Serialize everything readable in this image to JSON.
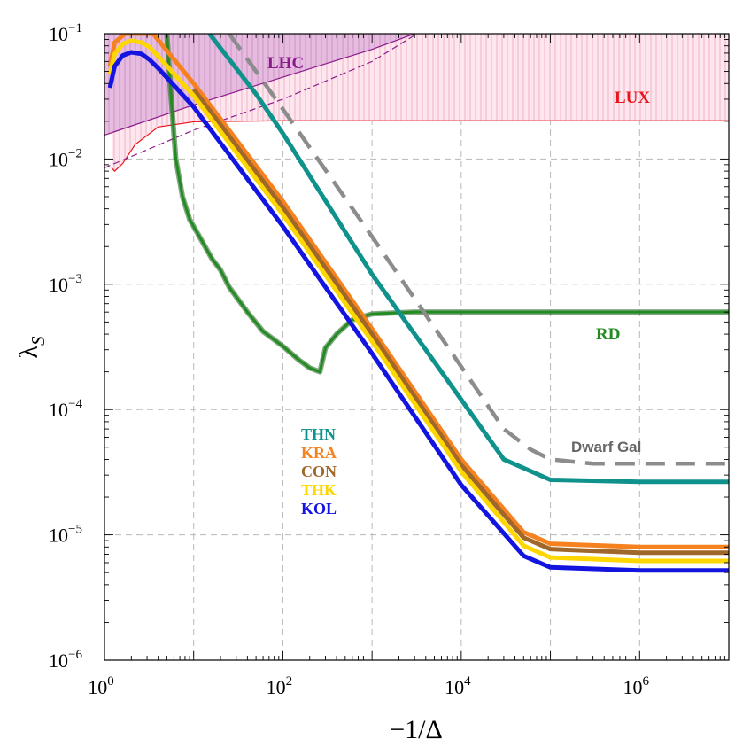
{
  "chart_data": {
    "type": "line",
    "title": "",
    "xlabel": "−1/Δ",
    "ylabel": "λ",
    "ylabel_sub": "S",
    "xscale": "log",
    "yscale": "log",
    "xlim": [
      1,
      10000000
    ],
    "ylim": [
      1e-06,
      0.1
    ],
    "grid": true,
    "x_ticks": [
      {
        "value": 1,
        "base": "10",
        "exp": "0"
      },
      {
        "value": 100,
        "base": "10",
        "exp": "2"
      },
      {
        "value": 10000,
        "base": "10",
        "exp": "4"
      },
      {
        "value": 1000000,
        "base": "10",
        "exp": "6"
      }
    ],
    "y_ticks": [
      {
        "value": 0.1,
        "base": "10",
        "exp": "−1"
      },
      {
        "value": 0.01,
        "base": "10",
        "exp": "−2"
      },
      {
        "value": 0.001,
        "base": "10",
        "exp": "−3"
      },
      {
        "value": 0.0001,
        "base": "10",
        "exp": "−4"
      },
      {
        "value": 1e-05,
        "base": "10",
        "exp": "−5"
      },
      {
        "value": 1e-06,
        "base": "10",
        "exp": "−6"
      }
    ],
    "regions": [
      {
        "name": "LHC",
        "label": "LHC",
        "color": "#8b1a8b",
        "boundary": [
          [
            1,
            0.0155
          ],
          [
            10,
            0.027
          ],
          [
            100,
            0.045
          ],
          [
            1000,
            0.075
          ],
          [
            3000,
            0.1
          ]
        ],
        "projection": [
          [
            1,
            0.0085
          ],
          [
            10,
            0.017
          ],
          [
            100,
            0.03
          ],
          [
            1000,
            0.06
          ],
          [
            3200,
            0.1
          ]
        ]
      },
      {
        "name": "LUX",
        "label": "LUX",
        "color": "#e8151a",
        "boundary": [
          [
            1.2,
            0.0085
          ],
          [
            1.3,
            0.008
          ],
          [
            1.6,
            0.0092
          ],
          [
            2.2,
            0.013
          ],
          [
            4,
            0.018
          ],
          [
            10,
            0.0198
          ],
          [
            100,
            0.0202
          ],
          [
            10000000,
            0.0202
          ]
        ]
      }
    ],
    "series": [
      {
        "name": "THN",
        "color": "#10928c",
        "x": [
          15,
          50,
          100,
          1000,
          10000,
          30000,
          100000,
          1000000,
          10000000
        ],
        "y": [
          0.1,
          0.033,
          0.016,
          0.0012,
          0.00012,
          4e-05,
          2.75e-05,
          2.65e-05,
          2.65e-05
        ]
      },
      {
        "name": "KRA",
        "color": "#f5821f",
        "x": [
          1.15,
          1.3,
          1.7,
          2.3,
          3,
          3.5,
          10,
          100,
          1000,
          10000,
          50000,
          100000,
          1000000,
          10000000
        ],
        "y": [
          0.055,
          0.085,
          0.1,
          0.1,
          0.1,
          0.1,
          0.04,
          0.0046,
          0.00044,
          4e-05,
          1.05e-05,
          8.5e-06,
          8e-06,
          8e-06
        ]
      },
      {
        "name": "CON",
        "color": "#a0672a",
        "x": [
          10,
          100,
          1000,
          10000,
          50000,
          100000,
          1000000,
          10000000
        ],
        "y": [
          0.036,
          0.0041,
          0.0004,
          3.6e-05,
          9.5e-06,
          7.7e-06,
          7.2e-06,
          7.2e-06
        ]
      },
      {
        "name": "THK",
        "color": "#ffd700",
        "x": [
          1.15,
          1.3,
          1.6,
          2,
          2.6,
          3.2,
          4,
          10,
          100,
          1000,
          10000,
          50000,
          100000,
          1000000,
          10000000
        ],
        "y": [
          0.048,
          0.069,
          0.083,
          0.088,
          0.085,
          0.078,
          0.066,
          0.032,
          0.0036,
          0.00035,
          3.2e-05,
          8.2e-06,
          6.6e-06,
          6.2e-06,
          6.2e-06
        ]
      },
      {
        "name": "KOL",
        "color": "#1414e0",
        "x": [
          1.15,
          1.3,
          1.6,
          2,
          2.6,
          3.2,
          4,
          10,
          100,
          1000,
          10000,
          50000,
          100000,
          1000000,
          10000000
        ],
        "y": [
          0.037,
          0.055,
          0.067,
          0.071,
          0.069,
          0.062,
          0.053,
          0.026,
          0.0029,
          0.00028,
          2.5e-05,
          6.8e-06,
          5.5e-06,
          5.2e-06,
          5.2e-06
        ]
      },
      {
        "name": "RD",
        "label": "RD",
        "color": "#228b22",
        "x": [
          5,
          5.6,
          6.3,
          7.5,
          9,
          12,
          16,
          20,
          25,
          40,
          60,
          100,
          150,
          200,
          260,
          300,
          400,
          600,
          1000,
          3000,
          10000,
          100000,
          10000000
        ],
        "y": [
          0.1,
          0.03,
          0.01,
          0.005,
          0.0033,
          0.0023,
          0.0016,
          0.0013,
          0.00095,
          0.0006,
          0.00042,
          0.00032,
          0.00025,
          0.000215,
          0.0002,
          0.00031,
          0.0004,
          0.00052,
          0.00058,
          0.0006,
          0.0006,
          0.0006,
          0.0006
        ]
      },
      {
        "name": "Dwarf Gal",
        "label": "Dwarf Gal",
        "color": "#8c8c8c",
        "dashed": true,
        "x": [
          25,
          100,
          1000,
          10000,
          30000,
          60000,
          100000,
          300000,
          1000000,
          10000000
        ],
        "y": [
          0.1,
          0.025,
          0.0024,
          0.00022,
          7e-05,
          4.8e-05,
          4e-05,
          3.7e-05,
          3.7e-05,
          3.7e-05
        ]
      }
    ],
    "legend": {
      "position": "left-middle",
      "entries": [
        "THN",
        "KRA",
        "CON",
        "THK",
        "KOL"
      ]
    }
  }
}
